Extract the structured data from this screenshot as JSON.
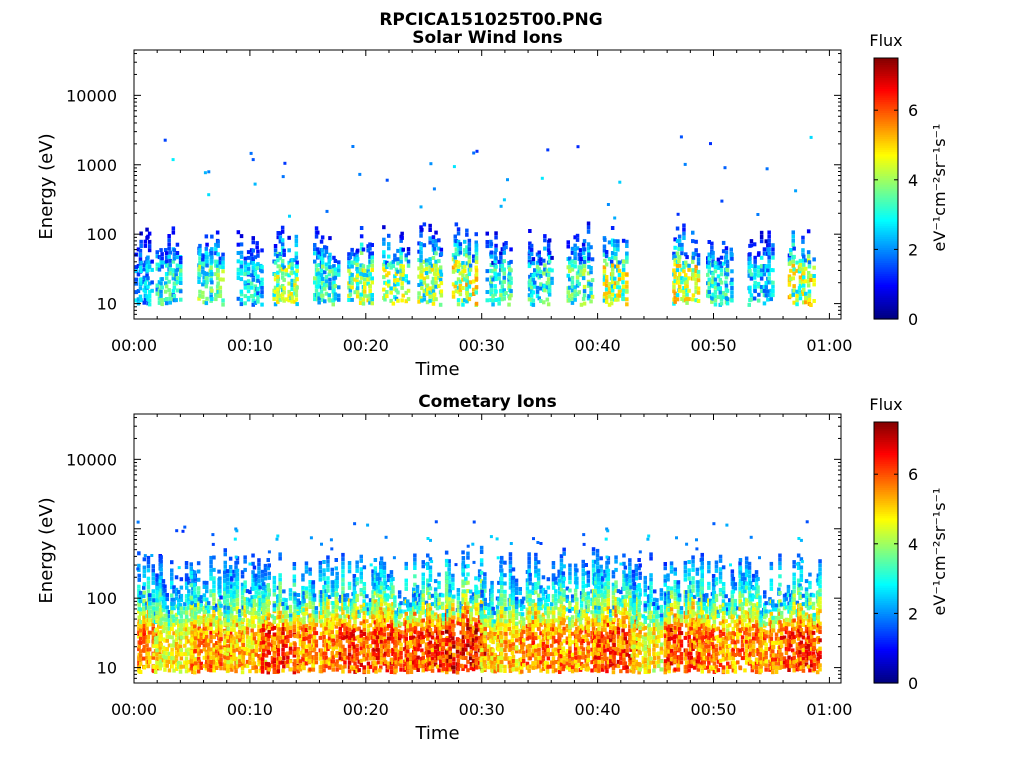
{
  "file_title": "RPCICA151025T00.PNG",
  "chart_data": [
    {
      "type": "heatmap",
      "title": "Solar Wind Ions",
      "xlabel": "Time",
      "ylabel": "Energy (eV)",
      "y_scale": "log",
      "ylim": [
        6,
        45000
      ],
      "xlim_minutes": [
        0,
        61
      ],
      "x_ticks": [
        "00:00",
        "00:10",
        "00:20",
        "00:30",
        "00:40",
        "00:50",
        "01:00"
      ],
      "y_ticks": [
        "10",
        "100",
        "1000",
        "10000"
      ],
      "colorbar": {
        "title": "Flux",
        "label": "eV⁻¹cm⁻²sr⁻¹s⁻¹",
        "ticks": [
          "0",
          "2",
          "4",
          "6"
        ],
        "range": [
          0,
          7.5
        ]
      },
      "bursts_minutes": [
        0.5,
        3,
        6.5,
        10,
        13,
        16.5,
        19.5,
        22.5,
        25.5,
        28.5,
        31.5,
        35,
        38.5,
        41.5,
        47.5,
        50.5,
        54,
        57.5
      ],
      "peak_flux": [
        3.0,
        4.0,
        4.5,
        3.5,
        5.0,
        4.0,
        5.0,
        5.0,
        5.0,
        5.5,
        4.0,
        4.0,
        4.5,
        5.5,
        5.5,
        4.0,
        3.5,
        5.5
      ]
    },
    {
      "type": "heatmap",
      "title": "Cometary Ions",
      "xlabel": "Time",
      "ylabel": "Energy (eV)",
      "y_scale": "log",
      "ylim": [
        6,
        45000
      ],
      "xlim_minutes": [
        0,
        61
      ],
      "x_ticks": [
        "00:00",
        "00:10",
        "00:20",
        "00:30",
        "00:40",
        "00:50",
        "01:00"
      ],
      "y_ticks": [
        "10",
        "100",
        "1000",
        "10000"
      ],
      "colorbar": {
        "title": "Flux",
        "label": "eV⁻¹cm⁻²sr⁻¹s⁻¹",
        "ticks": [
          "0",
          "2",
          "4",
          "6"
        ],
        "range": [
          0,
          7.5
        ]
      },
      "bursts_minutes": [
        0.5,
        3.5,
        6.5,
        9.5,
        12.5,
        16,
        19.5,
        22.5,
        25.5,
        28.5,
        31.5,
        35,
        38.5,
        41.5,
        44.5,
        47.5,
        50.5,
        54,
        57.5
      ],
      "peak_flux": [
        6.5,
        5.5,
        6.5,
        6.0,
        7.0,
        6.5,
        7.0,
        7.0,
        7.0,
        7.5,
        6.0,
        6.5,
        6.5,
        7.0,
        5.5,
        7.0,
        6.5,
        6.5,
        7.0
      ]
    }
  ]
}
